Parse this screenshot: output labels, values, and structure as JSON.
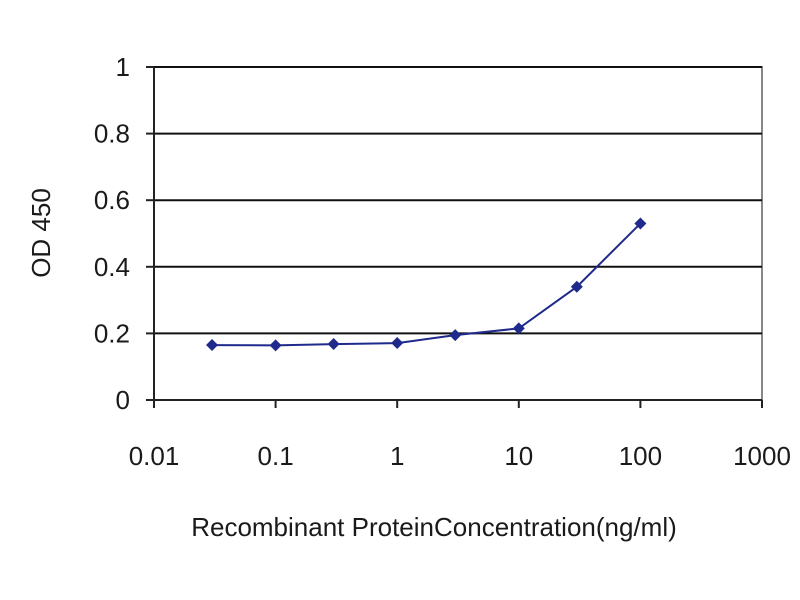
{
  "chart_data": {
    "type": "line",
    "xscale": "log",
    "xlim": [
      0.01,
      1000
    ],
    "ylim": [
      0,
      1
    ],
    "grid": "horizontal",
    "legend": "none",
    "xlabel": "Recombinant ProteinConcentration(ng/ml)",
    "ylabel": "OD 450",
    "x_ticks": [
      {
        "value": 0.01,
        "label": "0.01"
      },
      {
        "value": 0.1,
        "label": "0.1"
      },
      {
        "value": 1,
        "label": "1"
      },
      {
        "value": 10,
        "label": "10"
      },
      {
        "value": 100,
        "label": "100"
      },
      {
        "value": 1000,
        "label": "1000"
      }
    ],
    "y_ticks": [
      {
        "value": 0,
        "label": "0"
      },
      {
        "value": 0.2,
        "label": "0.2"
      },
      {
        "value": 0.4,
        "label": "0.4"
      },
      {
        "value": 0.6,
        "label": "0.6"
      },
      {
        "value": 0.8,
        "label": "0.8"
      },
      {
        "value": 1,
        "label": "1"
      }
    ],
    "series": [
      {
        "color": "#1f2a8c",
        "x": [
          0.03,
          0.1,
          0.3,
          1,
          3,
          10,
          30,
          100
        ],
        "y": [
          0.165,
          0.164,
          0.168,
          0.171,
          0.195,
          0.215,
          0.34,
          0.53
        ]
      }
    ]
  }
}
